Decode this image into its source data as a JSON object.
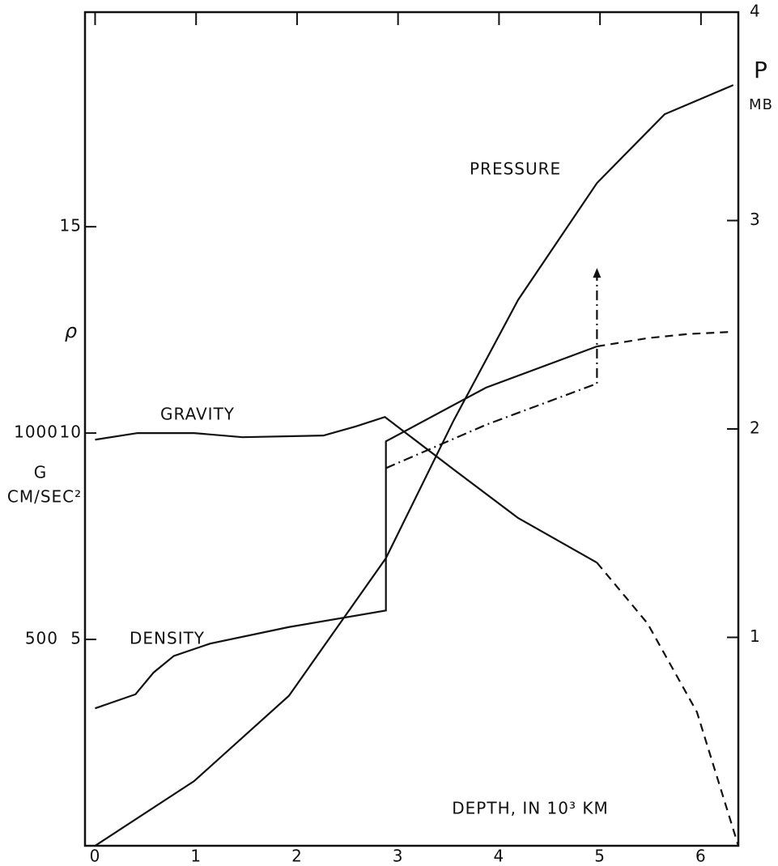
{
  "chart_data": {
    "type": "line",
    "xlabel": "DEPTH, IN 10³ KM",
    "xlim": [
      -0.1,
      6.37
    ],
    "xticks": [
      0,
      1,
      2,
      3,
      4,
      5,
      6
    ],
    "ylabel": "ρ",
    "ylim": [
      0,
      20.2
    ],
    "yticks": [
      5,
      10,
      15
    ],
    "y3label": [
      "G",
      "CM/SEC²"
    ],
    "y3lim": [
      0,
      2020
    ],
    "y3ticks": [
      500,
      1000
    ],
    "y2label": [
      "P",
      "MB"
    ],
    "y2lim": [
      0,
      4
    ],
    "y2ticks": [
      1,
      2,
      3,
      4
    ],
    "series": [
      {
        "name": "DENSITY",
        "color": "#111111",
        "axis": "y",
        "style": "solid",
        "x": [
          0,
          0.4,
          0.58,
          0.78,
          1.14,
          1.92,
          2.88,
          2.88,
          3.87,
          4.97
        ],
        "values": [
          3.33,
          3.67,
          4.2,
          4.6,
          4.9,
          5.3,
          5.7,
          9.8,
          11.1,
          12.1
        ]
      },
      {
        "color": "#111111",
        "axis": "y",
        "style": "dashed",
        "x": [
          4.97,
          5.47,
          5.87,
          6.28
        ],
        "values": [
          12.1,
          12.3,
          12.4,
          12.45
        ]
      },
      {
        "color": "#111111",
        "axis": "y",
        "style": "dash-dot",
        "end_arrow": true,
        "x": [
          2.88,
          3.87,
          4.97,
          4.97
        ],
        "values": [
          9.15,
          10.2,
          11.2,
          14.0
        ]
      },
      {
        "name": "GRAVITY",
        "color": "#111111",
        "axis": "y3",
        "style": "solid",
        "x": [
          0,
          0.42,
          0.98,
          1.46,
          2.26,
          2.58,
          2.87,
          3.55,
          4.19,
          4.97
        ],
        "values": [
          984,
          1000,
          1000,
          990,
          994,
          1016,
          1039,
          912,
          794,
          686
        ]
      },
      {
        "color": "#111111",
        "axis": "y3",
        "style": "dashed",
        "x": [
          4.97,
          5.47,
          5.96,
          6.37
        ],
        "values": [
          686,
          539,
          324,
          0
        ]
      },
      {
        "name": "PRESSURE",
        "color": "#111111",
        "axis": "y2",
        "style": "solid",
        "x": [
          0,
          0.98,
          1.92,
          2.88,
          3.55,
          4.19,
          4.97,
          5.64,
          6.32
        ],
        "values": [
          0,
          0.31,
          0.72,
          1.38,
          2.04,
          2.62,
          3.18,
          3.51,
          3.65
        ]
      }
    ]
  }
}
